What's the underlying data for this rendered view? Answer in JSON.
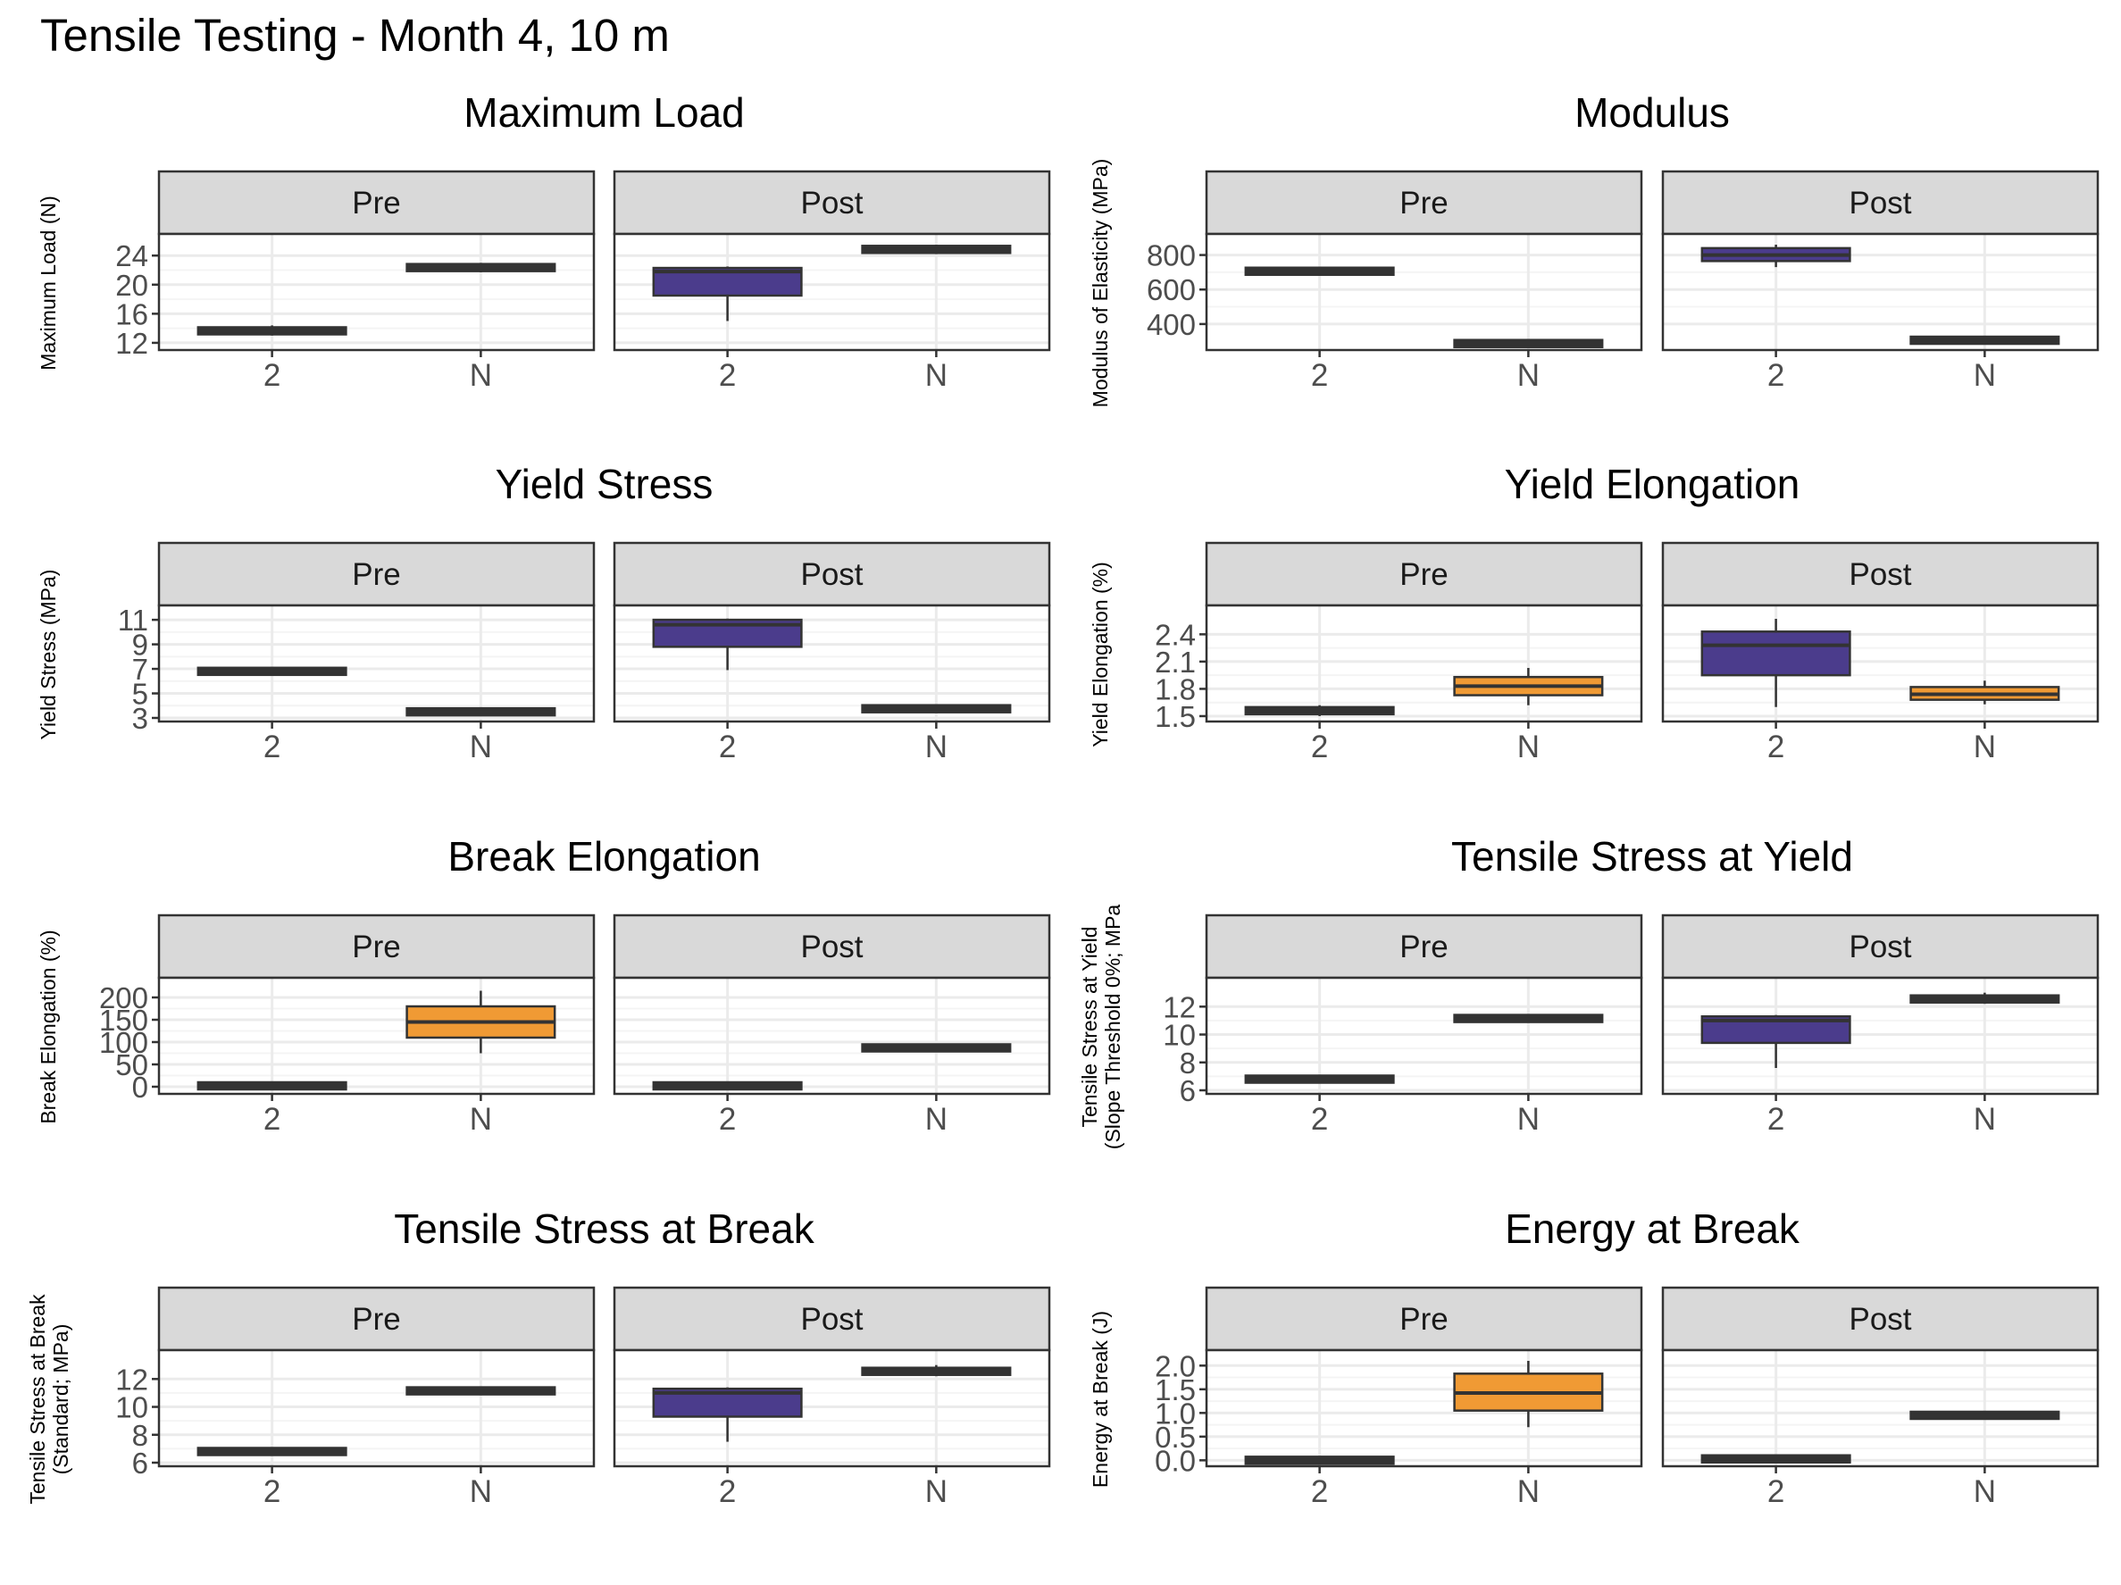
{
  "figure_title": "Tensile Testing - Month 4, 10 m",
  "colors": {
    "purple": "#4B3C8C",
    "orange": "#F09A34",
    "strip": "#D9D9D9",
    "grid": "#EBEBEB",
    "border": "#333333"
  },
  "chart_data": [
    {
      "type": "boxplot",
      "title": "Maximum Load",
      "ylabel": "Maximum Load (N)",
      "yticks": [
        12,
        16,
        20,
        24
      ],
      "ylim": [
        11.5,
        25.5
      ],
      "categories": [
        "2",
        "N"
      ],
      "facets": [
        {
          "label": "Pre",
          "boxes": [
            {
              "category": "2",
              "min": 13.0,
              "q1": 13.3,
              "median": 13.6,
              "q3": 14.0,
              "max": 14.4,
              "fill": "dark"
            },
            {
              "category": "N",
              "min": 21.7,
              "q1": 22.0,
              "median": 22.4,
              "q3": 22.7,
              "max": 23.0,
              "fill": "dark"
            }
          ]
        },
        {
          "label": "Post",
          "boxes": [
            {
              "category": "2",
              "min": 15.0,
              "q1": 18.5,
              "median": 21.8,
              "q3": 22.3,
              "max": 22.5,
              "fill": "purple"
            },
            {
              "category": "N",
              "min": 24.2,
              "q1": 24.5,
              "median": 24.8,
              "q3": 25.2,
              "max": 25.5,
              "fill": "dark"
            }
          ]
        }
      ]
    },
    {
      "type": "boxplot",
      "title": "Modulus",
      "ylabel": "Modulus of Elasticity (MPa)",
      "yticks": [
        400,
        600,
        800
      ],
      "ylim": [
        270,
        860
      ],
      "categories": [
        "2",
        "N"
      ],
      "facets": [
        {
          "label": "Pre",
          "boxes": [
            {
              "category": "2",
              "min": 695,
              "q1": 700,
              "median": 705,
              "q3": 712,
              "max": 718,
              "fill": "dark"
            },
            {
              "category": "N",
              "min": 280,
              "q1": 283,
              "median": 287,
              "q3": 291,
              "max": 295,
              "fill": "dark"
            }
          ]
        },
        {
          "label": "Post",
          "boxes": [
            {
              "category": "2",
              "min": 730,
              "q1": 765,
              "median": 800,
              "q3": 840,
              "max": 860,
              "fill": "purple"
            },
            {
              "category": "N",
              "min": 298,
              "q1": 302,
              "median": 306,
              "q3": 310,
              "max": 314,
              "fill": "dark"
            }
          ]
        }
      ]
    },
    {
      "type": "boxplot",
      "title": "Yield Stress",
      "ylabel": "Yield Stress (MPa)",
      "yticks": [
        3,
        5,
        7,
        9,
        11
      ],
      "ylim": [
        3,
        11.3
      ],
      "categories": [
        "2",
        "N"
      ],
      "facets": [
        {
          "label": "Pre",
          "boxes": [
            {
              "category": "2",
              "min": 6.5,
              "q1": 6.6,
              "median": 6.8,
              "q3": 7.0,
              "max": 7.1,
              "fill": "dark"
            },
            {
              "category": "N",
              "min": 3.3,
              "q1": 3.4,
              "median": 3.5,
              "q3": 3.6,
              "max": 3.7,
              "fill": "dark"
            }
          ]
        },
        {
          "label": "Post",
          "boxes": [
            {
              "category": "2",
              "min": 6.9,
              "q1": 8.8,
              "median": 10.6,
              "q3": 11.0,
              "max": 11.1,
              "fill": "purple"
            },
            {
              "category": "N",
              "min": 3.5,
              "q1": 3.6,
              "median": 3.75,
              "q3": 3.9,
              "max": 4.0,
              "fill": "dark"
            }
          ]
        }
      ]
    },
    {
      "type": "boxplot",
      "title": "Yield Elongation",
      "ylabel": "Yield Elongation (%)",
      "yticks": [
        1.5,
        1.8,
        2.1,
        2.4
      ],
      "ylim": [
        1.48,
        2.6
      ],
      "categories": [
        "2",
        "N"
      ],
      "facets": [
        {
          "label": "Pre",
          "boxes": [
            {
              "category": "2",
              "min": 1.5,
              "q1": 1.53,
              "median": 1.56,
              "q3": 1.59,
              "max": 1.62,
              "fill": "dark"
            },
            {
              "category": "N",
              "min": 1.62,
              "q1": 1.73,
              "median": 1.83,
              "q3": 1.93,
              "max": 2.03,
              "fill": "orange"
            }
          ]
        },
        {
          "label": "Post",
          "boxes": [
            {
              "category": "2",
              "min": 1.6,
              "q1": 1.95,
              "median": 2.28,
              "q3": 2.43,
              "max": 2.57,
              "fill": "purple"
            },
            {
              "category": "N",
              "min": 1.63,
              "q1": 1.68,
              "median": 1.74,
              "q3": 1.82,
              "max": 1.89,
              "fill": "orange"
            }
          ]
        }
      ]
    },
    {
      "type": "boxplot",
      "title": "Break Elongation",
      "ylabel": "Break Elongation (%)",
      "yticks": [
        0,
        50,
        100,
        150,
        200
      ],
      "ylim": [
        -8,
        220
      ],
      "ytick_labels": [
        "0",
        "50",
        "100",
        "150",
        "200"
      ],
      "categories": [
        "2",
        "N"
      ],
      "facets": [
        {
          "label": "Pre",
          "boxes": [
            {
              "category": "2",
              "min": 0,
              "q1": 1,
              "median": 2,
              "q3": 3,
              "max": 4,
              "fill": "dark"
            },
            {
              "category": "N",
              "min": 75,
              "q1": 110,
              "median": 145,
              "q3": 180,
              "max": 215,
              "fill": "orange"
            }
          ]
        },
        {
          "label": "Post",
          "boxes": [
            {
              "category": "2",
              "min": 0,
              "q1": 1,
              "median": 2,
              "q3": 3,
              "max": 4,
              "fill": "dark"
            },
            {
              "category": "N",
              "min": 85,
              "q1": 86,
              "median": 87,
              "q3": 88,
              "max": 89,
              "fill": "dark"
            }
          ]
        }
      ]
    },
    {
      "type": "boxplot",
      "title": "Tensile Stress at Yield",
      "ylabel": "Tensile Stress at Yield\n(Slope Threshold 0%; MPa",
      "yticks": [
        6,
        8,
        10,
        12
      ],
      "ylim": [
        6,
        13.3
      ],
      "categories": [
        "2",
        "N"
      ],
      "facets": [
        {
          "label": "Pre",
          "boxes": [
            {
              "category": "2",
              "min": 6.5,
              "q1": 6.6,
              "median": 6.8,
              "q3": 7.0,
              "max": 7.1,
              "fill": "dark"
            },
            {
              "category": "N",
              "min": 10.9,
              "q1": 11.0,
              "median": 11.1,
              "q3": 11.3,
              "max": 11.4,
              "fill": "dark"
            }
          ]
        },
        {
          "label": "Post",
          "boxes": [
            {
              "category": "2",
              "min": 7.6,
              "q1": 9.4,
              "median": 11.0,
              "q3": 11.3,
              "max": 11.4,
              "fill": "purple"
            },
            {
              "category": "N",
              "min": 12.2,
              "q1": 12.3,
              "median": 12.5,
              "q3": 12.8,
              "max": 13.0,
              "fill": "dark"
            }
          ]
        }
      ]
    },
    {
      "type": "boxplot",
      "title": "Tensile Stress at Break",
      "ylabel": "Tensile Stress at Break\n(Standard; MPa)",
      "yticks": [
        6,
        8,
        10,
        12
      ],
      "ylim": [
        6,
        13.3
      ],
      "categories": [
        "2",
        "N"
      ],
      "facets": [
        {
          "label": "Pre",
          "boxes": [
            {
              "category": "2",
              "min": 6.5,
              "q1": 6.6,
              "median": 6.8,
              "q3": 7.0,
              "max": 7.1,
              "fill": "dark"
            },
            {
              "category": "N",
              "min": 10.9,
              "q1": 11.0,
              "median": 11.1,
              "q3": 11.3,
              "max": 11.4,
              "fill": "dark"
            }
          ]
        },
        {
          "label": "Post",
          "boxes": [
            {
              "category": "2",
              "min": 7.5,
              "q1": 9.3,
              "median": 11.0,
              "q3": 11.3,
              "max": 11.4,
              "fill": "purple"
            },
            {
              "category": "N",
              "min": 12.2,
              "q1": 12.3,
              "median": 12.5,
              "q3": 12.8,
              "max": 13.0,
              "fill": "dark"
            }
          ]
        }
      ]
    },
    {
      "type": "boxplot",
      "title": "Energy at Break",
      "ylabel": "Energy at Break (J)",
      "yticks": [
        0.0,
        0.5,
        1.0,
        1.5,
        2.0
      ],
      "ylim": [
        -0.05,
        2.1
      ],
      "ytick_labels": [
        "0.0",
        "0.5",
        "1.0",
        "1.5",
        "2.0"
      ],
      "categories": [
        "2",
        "N"
      ],
      "facets": [
        {
          "label": "Pre",
          "boxes": [
            {
              "category": "2",
              "min": -0.02,
              "q1": -0.01,
              "median": 0.0,
              "q3": 0.01,
              "max": 0.02,
              "fill": "dark"
            },
            {
              "category": "N",
              "min": 0.7,
              "q1": 1.05,
              "median": 1.42,
              "q3": 1.83,
              "max": 2.1,
              "fill": "orange"
            }
          ]
        },
        {
          "label": "Post",
          "boxes": [
            {
              "category": "2",
              "min": 0.0,
              "q1": 0.01,
              "median": 0.03,
              "q3": 0.05,
              "max": 0.06,
              "fill": "dark"
            },
            {
              "category": "N",
              "min": 0.9,
              "q1": 0.92,
              "median": 0.95,
              "q3": 0.98,
              "max": 1.0,
              "fill": "dark"
            }
          ]
        }
      ]
    }
  ]
}
